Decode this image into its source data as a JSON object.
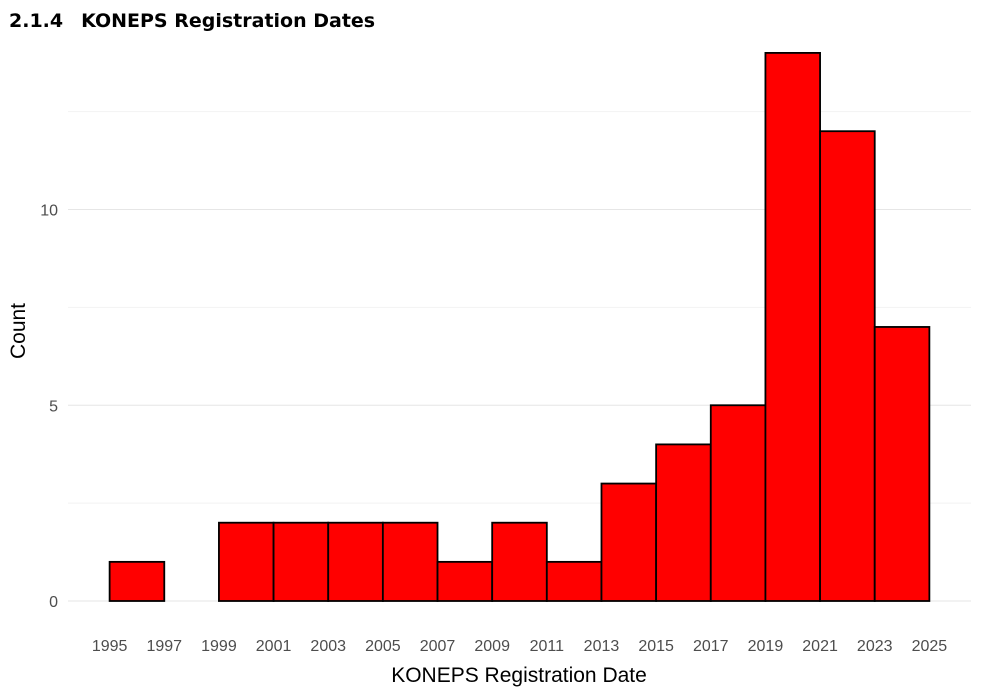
{
  "heading": {
    "number": "2.1.4",
    "title": "KONEPS Registration Dates"
  },
  "chart_data": {
    "type": "bar",
    "xlabel": "KONEPS Registration Date",
    "ylabel": "Count",
    "x_ticks": [
      "1995",
      "1997",
      "1999",
      "2001",
      "2003",
      "2005",
      "2007",
      "2009",
      "2011",
      "2013",
      "2015",
      "2017",
      "2019",
      "2021",
      "2023",
      "2025"
    ],
    "y_ticks": [
      0,
      5,
      10
    ],
    "ylim": [
      0,
      14
    ],
    "bins": [
      {
        "start": 1995,
        "end": 1997,
        "count": 1
      },
      {
        "start": 1997,
        "end": 1999,
        "count": 0
      },
      {
        "start": 1999,
        "end": 2001,
        "count": 2
      },
      {
        "start": 2001,
        "end": 2003,
        "count": 2
      },
      {
        "start": 2003,
        "end": 2005,
        "count": 2
      },
      {
        "start": 2005,
        "end": 2007,
        "count": 2
      },
      {
        "start": 2007,
        "end": 2009,
        "count": 1
      },
      {
        "start": 2009,
        "end": 2011,
        "count": 2
      },
      {
        "start": 2011,
        "end": 2013,
        "count": 1
      },
      {
        "start": 2013,
        "end": 2015,
        "count": 3
      },
      {
        "start": 2015,
        "end": 2017,
        "count": 4
      },
      {
        "start": 2017,
        "end": 2019,
        "count": 5
      },
      {
        "start": 2019,
        "end": 2021,
        "count": 14
      },
      {
        "start": 2021,
        "end": 2023,
        "count": 12
      },
      {
        "start": 2023,
        "end": 2025,
        "count": 7
      }
    ],
    "grid": true,
    "legend": "none",
    "colors": {
      "bar_fill": "#ff0000",
      "bar_outline": "#000000",
      "grid_major": "#e6e6e6",
      "grid_minor": "#f2f2f2"
    }
  }
}
